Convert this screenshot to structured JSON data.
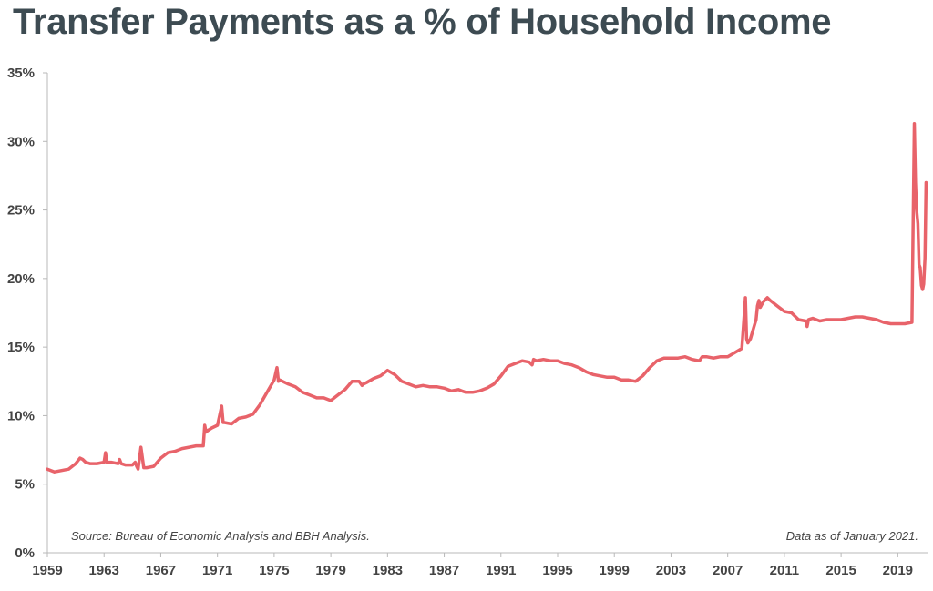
{
  "chart_data": {
    "type": "line",
    "title": "Transfer Payments as a % of Household Income",
    "xlabel": "",
    "ylabel": "",
    "xlim": [
      1959,
      2021.1
    ],
    "ylim": [
      0,
      35
    ],
    "x_ticks": [
      "1959",
      "1963",
      "1967",
      "1971",
      "1975",
      "1979",
      "1983",
      "1987",
      "1991",
      "1995",
      "1999",
      "2003",
      "2007",
      "2011",
      "2015",
      "2019"
    ],
    "y_ticks": [
      "0%",
      "5%",
      "10%",
      "15%",
      "20%",
      "25%",
      "30%",
      "35%"
    ],
    "grid": false,
    "annotations": {
      "source": "Source: Bureau of Economic Analysis and BBH Analysis.",
      "date_note": "Data as of January 2021."
    },
    "colors": {
      "line": "#e8636a",
      "title": "#3d4b52",
      "axis": "#b8b8b8",
      "text": "#444444"
    },
    "series": [
      {
        "x": [
          1959.0,
          1959.5,
          1960.0,
          1960.5,
          1961.0,
          1961.3,
          1961.5,
          1961.7,
          1962.0,
          1962.5,
          1963.0,
          1963.1,
          1963.2,
          1963.5,
          1964.0,
          1964.1,
          1964.2,
          1964.5,
          1965.0,
          1965.2,
          1965.3,
          1965.4,
          1965.6,
          1965.8,
          1966.0,
          1966.5,
          1967.0,
          1967.5,
          1968.0,
          1968.5,
          1969.0,
          1969.5,
          1970.0,
          1970.1,
          1970.2,
          1970.3,
          1970.6,
          1971.0,
          1971.3,
          1971.4,
          1971.5,
          1972.0,
          1972.5,
          1973.0,
          1973.5,
          1974.0,
          1974.5,
          1975.0,
          1975.2,
          1975.3,
          1975.4,
          1975.6,
          1976.0,
          1976.5,
          1977.0,
          1977.5,
          1978.0,
          1978.5,
          1979.0,
          1979.5,
          1980.0,
          1980.5,
          1981.0,
          1981.2,
          1981.3,
          1981.5,
          1982.0,
          1982.5,
          1983.0,
          1983.5,
          1984.0,
          1984.5,
          1985.0,
          1985.5,
          1986.0,
          1986.5,
          1987.0,
          1987.5,
          1988.0,
          1988.5,
          1989.0,
          1989.5,
          1990.0,
          1990.5,
          1991.0,
          1991.5,
          1992.0,
          1992.5,
          1993.0,
          1993.2,
          1993.3,
          1993.5,
          1994.0,
          1994.5,
          1995.0,
          1995.5,
          1996.0,
          1996.5,
          1997.0,
          1997.5,
          1998.0,
          1998.5,
          1999.0,
          1999.5,
          2000.0,
          2000.5,
          2001.0,
          2001.5,
          2002.0,
          2002.5,
          2003.0,
          2003.5,
          2004.0,
          2004.5,
          2005.0,
          2005.2,
          2005.5,
          2006.0,
          2006.5,
          2007.0,
          2007.5,
          2008.0,
          2008.25,
          2008.33,
          2008.42,
          2008.6,
          2009.0,
          2009.1,
          2009.2,
          2009.3,
          2009.5,
          2009.8,
          2010.0,
          2010.5,
          2011.0,
          2011.5,
          2012.0,
          2012.5,
          2012.6,
          2012.7,
          2013.0,
          2013.5,
          2014.0,
          2014.5,
          2015.0,
          2015.5,
          2016.0,
          2016.5,
          2017.0,
          2017.5,
          2018.0,
          2018.5,
          2019.0,
          2019.5,
          2020.0,
          2020.17,
          2020.25,
          2020.33,
          2020.42,
          2020.5,
          2020.58,
          2020.67,
          2020.75,
          2020.83,
          2020.92,
          2021.0
        ],
        "y": [
          6.1,
          5.9,
          6.0,
          6.1,
          6.5,
          6.9,
          6.8,
          6.6,
          6.5,
          6.5,
          6.6,
          7.3,
          6.6,
          6.6,
          6.5,
          6.8,
          6.5,
          6.4,
          6.4,
          6.6,
          6.3,
          6.1,
          7.7,
          6.2,
          6.2,
          6.3,
          6.9,
          7.3,
          7.4,
          7.6,
          7.7,
          7.8,
          7.8,
          9.3,
          8.8,
          8.9,
          9.1,
          9.3,
          10.7,
          9.5,
          9.5,
          9.4,
          9.8,
          9.9,
          10.1,
          10.8,
          11.7,
          12.6,
          13.5,
          12.5,
          12.6,
          12.5,
          12.3,
          12.1,
          11.7,
          11.5,
          11.3,
          11.3,
          11.1,
          11.5,
          11.9,
          12.5,
          12.5,
          12.2,
          12.3,
          12.4,
          12.7,
          12.9,
          13.3,
          13.0,
          12.5,
          12.3,
          12.1,
          12.2,
          12.1,
          12.1,
          12.0,
          11.8,
          11.9,
          11.7,
          11.7,
          11.8,
          12.0,
          12.3,
          12.9,
          13.6,
          13.8,
          14.0,
          13.9,
          13.7,
          14.1,
          14.0,
          14.1,
          14.0,
          14.0,
          13.8,
          13.7,
          13.5,
          13.2,
          13.0,
          12.9,
          12.8,
          12.8,
          12.6,
          12.6,
          12.5,
          12.9,
          13.5,
          14.0,
          14.2,
          14.2,
          14.2,
          14.3,
          14.1,
          14.0,
          14.3,
          14.3,
          14.2,
          14.3,
          14.3,
          14.6,
          14.9,
          18.6,
          15.6,
          15.3,
          15.6,
          17.0,
          18.0,
          18.4,
          17.9,
          18.3,
          18.6,
          18.4,
          18.0,
          17.6,
          17.5,
          17.0,
          16.9,
          16.5,
          17.0,
          17.1,
          16.9,
          17.0,
          17.0,
          17.0,
          17.1,
          17.2,
          17.2,
          17.1,
          17.0,
          16.8,
          16.7,
          16.7,
          16.7,
          16.8,
          31.3,
          27.0,
          25.0,
          24.0,
          21.0,
          20.8,
          19.5,
          19.2,
          19.6,
          21.5,
          27.0
        ]
      }
    ]
  }
}
